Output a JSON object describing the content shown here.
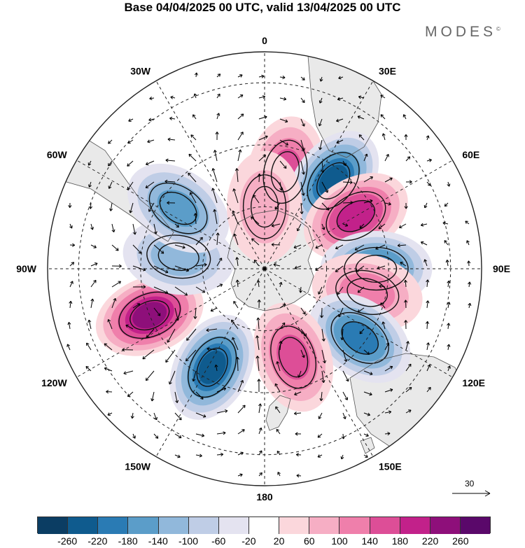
{
  "title": "Base 04/04/2025 00 UTC, valid 13/04/2025 00 UTC",
  "brand": "MODES",
  "brand_mark": "©",
  "longitude_labels": [
    "0",
    "30E",
    "60E",
    "90E",
    "120E",
    "150E",
    "180",
    "150W",
    "120W",
    "90W",
    "60W",
    "30W"
  ],
  "reference_vector": {
    "value": "30"
  },
  "colorbar": {
    "ticks": [
      "-260",
      "-220",
      "-180",
      "-140",
      "-100",
      "-60",
      "-20",
      "20",
      "60",
      "100",
      "140",
      "180",
      "220",
      "260"
    ],
    "colors": [
      "#0b3d63",
      "#0f5b8e",
      "#2a7bb4",
      "#5b9dc9",
      "#91b8db",
      "#bfcde6",
      "#e4e3f0",
      "#ffffff",
      "#fbd7dc",
      "#f6aec4",
      "#ef7fab",
      "#dd4e97",
      "#c2218a",
      "#8e0f7a",
      "#5a086a"
    ]
  },
  "colors": {
    "land": "#e9e9e9",
    "ocean": "#ffffff",
    "coast": "#555555"
  },
  "anomalies": [
    {
      "lon": 12,
      "colat": 32,
      "value": 175
    },
    {
      "lon": 38,
      "colat": 36,
      "value": -240
    },
    {
      "lon": 60,
      "colat": 34,
      "value": 210
    },
    {
      "lon": 90,
      "colat": 36,
      "value": -200
    },
    {
      "lon": 103,
      "colat": 34,
      "value": 130
    },
    {
      "lon": 126,
      "colat": 38,
      "value": -190
    },
    {
      "lon": 162,
      "colat": 30,
      "value": 150
    },
    {
      "lon": -152,
      "colat": 36,
      "value": -230
    },
    {
      "lon": -112,
      "colat": 40,
      "value": 220
    },
    {
      "lon": -82,
      "colat": 28,
      "value": -110
    },
    {
      "lon": -55,
      "colat": 34,
      "value": -150
    },
    {
      "lon": 0,
      "colat": 20,
      "value": 90
    }
  ]
}
